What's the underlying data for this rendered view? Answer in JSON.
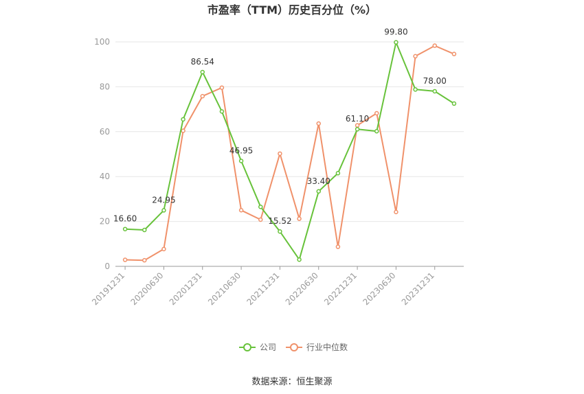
{
  "chart_data": {
    "type": "line",
    "title": "市盈率（TTM）历史百分位（%）",
    "xlabel": "",
    "ylabel": "",
    "ylim": [
      0,
      100
    ],
    "yticks": [
      "0",
      "20",
      "40",
      "60",
      "80",
      "100"
    ],
    "x": [
      "20191231",
      "20200331",
      "20200630",
      "20200930",
      "20201231",
      "20210331",
      "20210630",
      "20210930",
      "20211231",
      "20220331",
      "20220630",
      "20220930",
      "20221231",
      "20230331",
      "20230630",
      "20230930",
      "20231231",
      "20240331"
    ],
    "xtick_labels": [
      "20191231",
      "20200630",
      "20201231",
      "20210630",
      "20211231",
      "20220630",
      "20221231",
      "20230630",
      "20231231"
    ],
    "series": [
      {
        "name": "公司",
        "color": "#67c23a",
        "values": [
          16.6,
          16.2,
          24.95,
          65.5,
          86.54,
          69.0,
          46.95,
          26.5,
          15.52,
          3.0,
          33.4,
          41.5,
          61.1,
          60.2,
          99.8,
          78.8,
          78.0,
          72.5
        ],
        "labeled": [
          {
            "index": 0,
            "text": "16.60"
          },
          {
            "index": 2,
            "text": "24.95"
          },
          {
            "index": 4,
            "text": "86.54"
          },
          {
            "index": 6,
            "text": "46.95"
          },
          {
            "index": 8,
            "text": "15.52"
          },
          {
            "index": 10,
            "text": "33.40"
          },
          {
            "index": 12,
            "text": "61.10"
          },
          {
            "index": 14,
            "text": "99.80"
          },
          {
            "index": 16,
            "text": "78.00"
          }
        ]
      },
      {
        "name": "行业中位数",
        "color": "#f0916a",
        "values": [
          2.9,
          2.7,
          7.7,
          60.4,
          75.8,
          79.6,
          25.0,
          20.8,
          50.2,
          21.2,
          63.6,
          8.7,
          62.8,
          68.2,
          24.2,
          93.6,
          98.3,
          94.6
        ]
      }
    ],
    "grid": true,
    "legend": "bottom-center"
  },
  "source": "数据来源：恒生聚源"
}
